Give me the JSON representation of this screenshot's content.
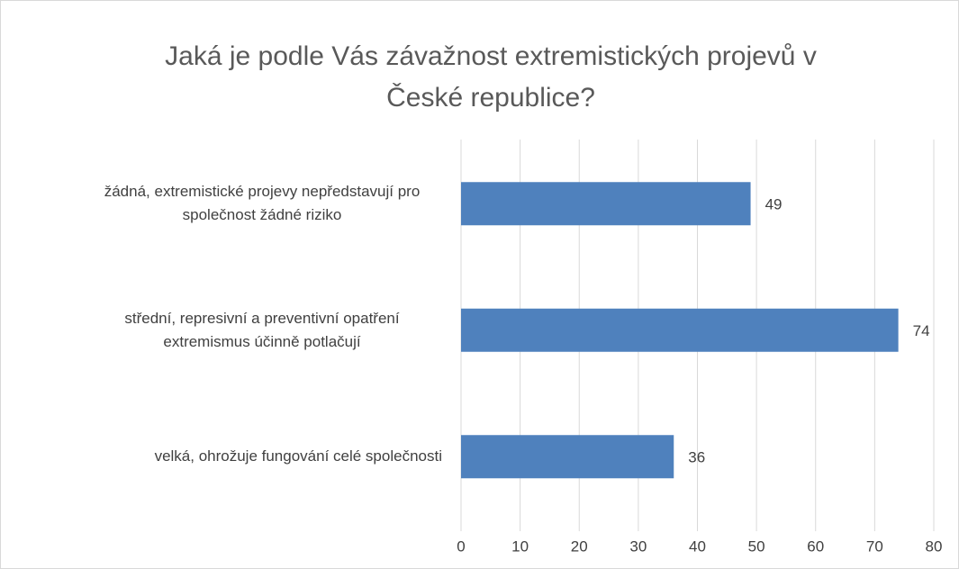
{
  "chart_data": {
    "type": "bar",
    "orientation": "horizontal",
    "title": "Jaká je podle Vás závažnost extremistických projevů v České republice?",
    "categories": [
      "žádná, extremistické projevy nepředstavují pro společnost žádné riziko",
      "střední, represivní a preventivní opatření extremismus účinně potlačují",
      "velká, ohrožuje fungování celé společnosti"
    ],
    "values": [
      49,
      74,
      36
    ],
    "color": "#4f81bd",
    "xlim": [
      0,
      80
    ],
    "xticks": [
      0,
      10,
      20,
      30,
      40,
      50,
      60,
      70,
      80
    ],
    "grid": true
  }
}
